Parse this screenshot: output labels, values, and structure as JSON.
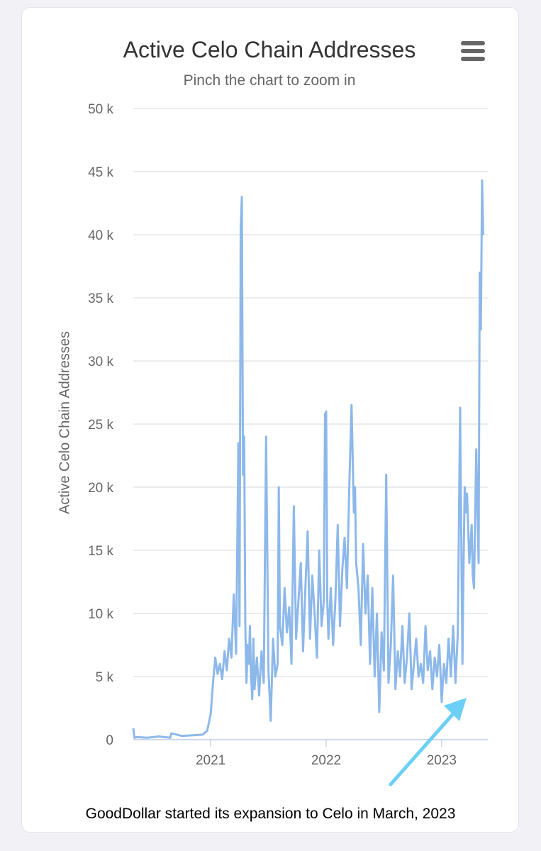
{
  "menu_icon": "hamburger-menu-icon",
  "caption": "GoodDollar started its expansion to Celo in March, 2023",
  "colors": {
    "line": "#8db8ea",
    "arrow": "#6ccff6",
    "grid": "#e6e6e6"
  },
  "chart_data": {
    "type": "line",
    "title": "Active Celo Chain Addresses",
    "subtitle": "Pinch the chart to zoom in",
    "xlabel": "",
    "ylabel": "Active Celo Chain Addresses",
    "xlim": [
      2020.33,
      2023.4
    ],
    "ylim": [
      0,
      50000
    ],
    "yticks": [
      0,
      5000,
      10000,
      15000,
      20000,
      25000,
      30000,
      35000,
      40000,
      45000,
      50000
    ],
    "ytick_labels": [
      "0",
      "5 k",
      "10 k",
      "15 k",
      "20 k",
      "25 k",
      "30 k",
      "35 k",
      "40 k",
      "45 k",
      "50 k"
    ],
    "xticks": [
      2021,
      2022,
      2023
    ],
    "xtick_labels": [
      "2021",
      "2022",
      "2023"
    ],
    "grid": true,
    "legend": "none",
    "series": [
      {
        "x": [
          2020.33,
          2020.34,
          2020.36,
          2020.45,
          2020.55,
          2020.65,
          2020.66,
          2020.75,
          2020.85,
          2020.93,
          2020.97,
          2021.0,
          2021.02,
          2021.04,
          2021.06,
          2021.08,
          2021.1,
          2021.12,
          2021.14,
          2021.16,
          2021.18,
          2021.2,
          2021.22,
          2021.24,
          2021.25,
          2021.26,
          2021.27,
          2021.28,
          2021.29,
          2021.3,
          2021.31,
          2021.32,
          2021.33,
          2021.34,
          2021.35,
          2021.36,
          2021.37,
          2021.38,
          2021.4,
          2021.42,
          2021.44,
          2021.46,
          2021.48,
          2021.5,
          2021.52,
          2021.54,
          2021.56,
          2021.58,
          2021.59,
          2021.6,
          2021.62,
          2021.64,
          2021.66,
          2021.68,
          2021.7,
          2021.72,
          2021.74,
          2021.76,
          2021.78,
          2021.8,
          2021.82,
          2021.84,
          2021.86,
          2021.88,
          2021.9,
          2021.92,
          2021.94,
          2021.96,
          2021.98,
          2021.99,
          2022.0,
          2022.01,
          2022.02,
          2022.04,
          2022.06,
          2022.08,
          2022.1,
          2022.12,
          2022.14,
          2022.16,
          2022.18,
          2022.2,
          2022.22,
          2022.24,
          2022.25,
          2022.26,
          2022.28,
          2022.3,
          2022.32,
          2022.34,
          2022.36,
          2022.38,
          2022.4,
          2022.42,
          2022.44,
          2022.46,
          2022.48,
          2022.5,
          2022.52,
          2022.54,
          2022.56,
          2022.58,
          2022.6,
          2022.62,
          2022.64,
          2022.66,
          2022.68,
          2022.7,
          2022.72,
          2022.74,
          2022.76,
          2022.78,
          2022.8,
          2022.82,
          2022.84,
          2022.86,
          2022.88,
          2022.9,
          2022.92,
          2022.94,
          2022.96,
          2022.98,
          2023.0,
          2023.02,
          2023.04,
          2023.06,
          2023.08,
          2023.1,
          2023.12,
          2023.14,
          2023.16,
          2023.18,
          2023.19,
          2023.2,
          2023.21,
          2023.22,
          2023.24,
          2023.26,
          2023.27,
          2023.28,
          2023.3,
          2023.32,
          2023.33,
          2023.34,
          2023.35,
          2023.36
        ],
        "values": [
          900,
          150,
          200,
          150,
          250,
          150,
          500,
          300,
          350,
          400,
          700,
          2000,
          4500,
          6500,
          5200,
          6000,
          4800,
          7000,
          5500,
          8000,
          6500,
          11500,
          6800,
          23500,
          9000,
          40500,
          43000,
          21000,
          24000,
          9000,
          4500,
          7500,
          6000,
          9000,
          5000,
          3200,
          8000,
          4000,
          6500,
          3500,
          7000,
          4500,
          24000,
          5500,
          1500,
          8000,
          5000,
          6000,
          20000,
          9000,
          7500,
          12000,
          8500,
          10500,
          6000,
          18500,
          8000,
          11000,
          14000,
          7000,
          12000,
          16500,
          8000,
          13000,
          10000,
          6500,
          15000,
          9000,
          11000,
          25800,
          26000,
          11000,
          8000,
          12000,
          7500,
          11000,
          17000,
          9000,
          13500,
          16000,
          12000,
          20000,
          26500,
          18000,
          20000,
          14000,
          12000,
          7500,
          15500,
          10000,
          13000,
          6000,
          12000,
          5000,
          10000,
          2200,
          8500,
          5500,
          21000,
          4500,
          7500,
          13000,
          4000,
          7000,
          5000,
          9000,
          4500,
          6500,
          10000,
          4000,
          6000,
          8000,
          5000,
          6000,
          4500,
          9000,
          5500,
          7000,
          4000,
          6500,
          5000,
          7500,
          3000,
          6000,
          4500,
          8000,
          5000,
          9000,
          4500,
          8500,
          26300,
          6000,
          14000,
          20000,
          18000,
          19500,
          14000,
          17000,
          13000,
          12000,
          23000,
          14000,
          37000,
          32500,
          44300,
          40000
        ]
      }
    ]
  }
}
